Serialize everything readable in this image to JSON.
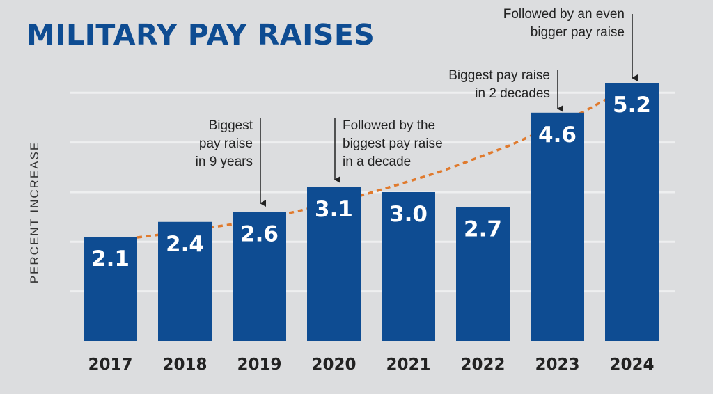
{
  "chart_data": {
    "type": "bar",
    "title": "MILITARY PAY RAISES",
    "xlabel": "",
    "ylabel": "PERCENT INCREASE",
    "categories": [
      "2017",
      "2018",
      "2019",
      "2020",
      "2021",
      "2022",
      "2023",
      "2024"
    ],
    "values": [
      2.1,
      2.4,
      2.6,
      3.1,
      3.0,
      2.7,
      4.6,
      5.2
    ],
    "data_labels": [
      "2.1",
      "2.4",
      "2.6",
      "3.1",
      "3.0",
      "2.7",
      "4.6",
      "5.2"
    ],
    "ylim": [
      0,
      5.2
    ],
    "grid": true,
    "trend_line": "dotted curve",
    "annotations": [
      {
        "category": "2019",
        "lines": [
          "Biggest",
          "pay raise",
          "in 9 years"
        ]
      },
      {
        "category": "2020",
        "lines": [
          "Followed by the",
          "biggest pay raise",
          "in a decade"
        ]
      },
      {
        "category": "2023",
        "lines": [
          "Biggest pay raise",
          "in 2 decades"
        ]
      },
      {
        "category": "2024",
        "lines": [
          "Followed by an even",
          "bigger pay raise"
        ]
      }
    ],
    "colors": {
      "bar": "#0e4c92",
      "trend": "#e07a2d",
      "background": "#dcdddf",
      "grid": "#eeeff0",
      "title": "#0e4c92"
    }
  }
}
